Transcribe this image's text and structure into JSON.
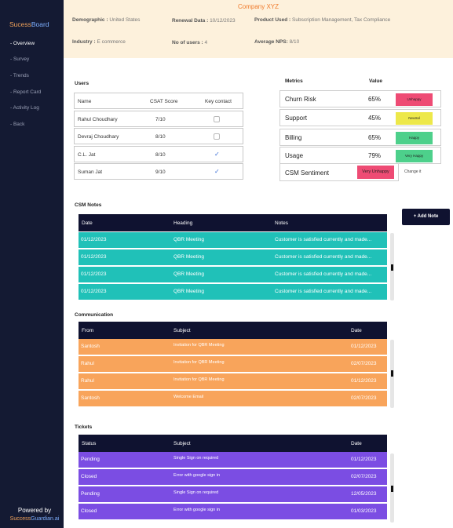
{
  "sidebar": {
    "brand_part1": "Sucess",
    "brand_part2": "Board",
    "items": [
      "- Overview",
      "- Survey",
      "- Trends",
      "- Report Card",
      "- Activity Log",
      "- Back"
    ],
    "powered_by": "Powered by",
    "footer_part1": "Success",
    "footer_part2": "Guardian.ai"
  },
  "header": {
    "company": "Company XYZ",
    "demographic_label": "Demographic :",
    "demographic_value": "United States",
    "renewal_label": "Renewal Data :",
    "renewal_value": "10/12/2023",
    "product_label": "Product Used :",
    "product_value": "Subscription Management, Tax Compliance",
    "industry_label": "Industry :",
    "industry_value": "E commerce",
    "users_label": "No of users :",
    "users_value": "4",
    "nps_label": "Average NPS:",
    "nps_value": "8/10"
  },
  "users": {
    "title": "Users",
    "headers": [
      "Name",
      "CSAT Score",
      "Key contact"
    ],
    "rows": [
      {
        "name": "Rahul Choudhary",
        "score": "7/10",
        "key": false
      },
      {
        "name": "Devraj Choudhary",
        "score": "8/10",
        "key": false
      },
      {
        "name": "C.L. Jat",
        "score": "8/10",
        "key": true
      },
      {
        "name": "Suman Jat",
        "score": "9/10",
        "key": true
      }
    ]
  },
  "metrics": {
    "title": "Metrics",
    "value_header": "Value",
    "rows": [
      {
        "name": "Churn Risk",
        "value": "65%",
        "badge": "Unhappy",
        "color": "#ee4b74"
      },
      {
        "name": "Support",
        "value": "45%",
        "badge": "Neutral",
        "color": "#ede84a"
      },
      {
        "name": "Billing",
        "value": "65%",
        "badge": "Happy",
        "color": "#4dd08b"
      },
      {
        "name": "Usage",
        "value": "79%",
        "badge": "Very Happy",
        "color": "#4dd08b"
      }
    ],
    "sentiment_label": "CSM Sentiment",
    "sentiment_value": "Very Unhappy",
    "sentiment_color": "#ee4b74",
    "change_label": "Change it"
  },
  "csm_notes": {
    "title": "CSM Notes",
    "add_button": "+ Add Note",
    "headers": [
      "Date",
      "Heading",
      "Notes"
    ],
    "rows": [
      [
        "01/12/2023",
        "QBR Meeting",
        "Customer is satisfied currently and made..."
      ],
      [
        "01/12/2023",
        "QBR Meeting",
        "Customer is satisfied currently and made..."
      ],
      [
        "01/12/2023",
        "QBR Meeting",
        "Customer is satisfied currently and made..."
      ],
      [
        "01/12/2023",
        "QBR Meeting",
        "Customer is satisfied currently and made..."
      ]
    ]
  },
  "communication": {
    "title": "Communication",
    "headers": [
      "From",
      "Subject",
      "Date"
    ],
    "rows": [
      [
        "Santosh",
        "Invitation for QBR Meeting",
        "01/12/2023"
      ],
      [
        "Rahul",
        "Invitation for QBR Meeting",
        "02/07/2023"
      ],
      [
        "Rahul",
        "Invitation for QBR Meeting",
        "01/12/2023"
      ],
      [
        "Santosh",
        "Welcome Email",
        "02/07/2023"
      ]
    ]
  },
  "tickets": {
    "title": "Tickets",
    "headers": [
      "Status",
      "Subject",
      "Date"
    ],
    "rows": [
      [
        "Pending",
        "Single Sign on required",
        "01/12/2023"
      ],
      [
        "Closed",
        "Error with google sign in",
        "02/07/2023"
      ],
      [
        "Pending",
        "Single Sign on required",
        "12/05/2023"
      ],
      [
        "Closed",
        "Error with google sign in",
        "01/03/2023"
      ]
    ]
  }
}
